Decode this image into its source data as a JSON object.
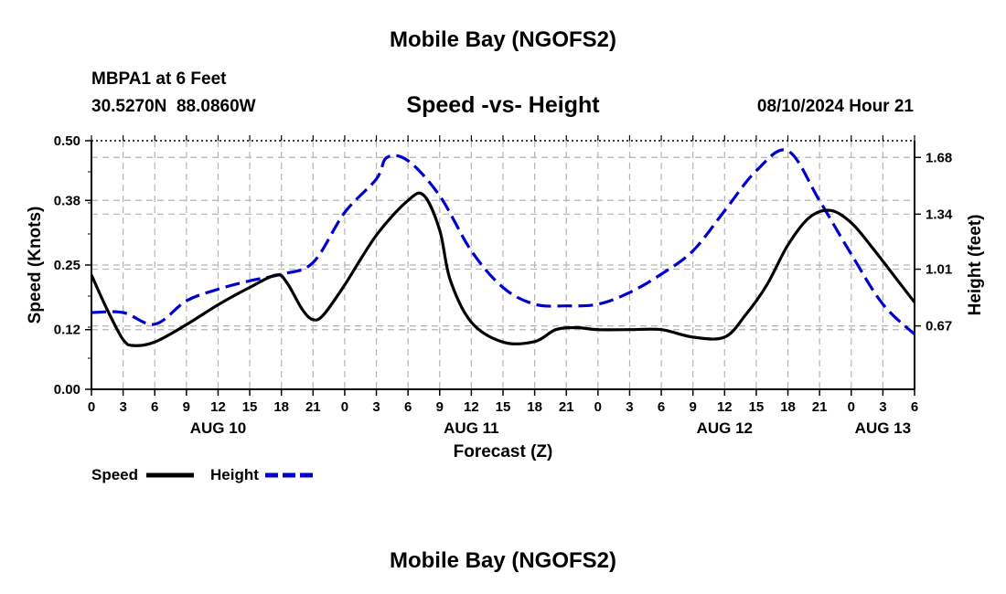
{
  "chart_data": {
    "type": "line",
    "title": "Mobile Bay (NGOFS2)",
    "footer_title": "Mobile Bay (NGOFS2)",
    "subtitle": "Speed -vs- Height",
    "station": "MBPA1 at 6 Feet",
    "coords": "30.5270N  88.0860W",
    "datetime": "08/10/2024 Hour 21",
    "xlabel": "Forecast (Z)",
    "ylabel_left": "Speed (Knots)",
    "ylabel_right": "Height (feet)",
    "x_range_hours": [
      0,
      78
    ],
    "x_tick_labels": [
      "0",
      "3",
      "6",
      "9",
      "12",
      "15",
      "18",
      "21",
      "0",
      "3",
      "6",
      "9",
      "12",
      "15",
      "18",
      "21",
      "0",
      "3",
      "6",
      "9",
      "12",
      "15",
      "18",
      "21",
      "0",
      "3",
      "6"
    ],
    "date_labels": [
      {
        "label": "AUG 10",
        "hour": 12
      },
      {
        "label": "AUG 11",
        "hour": 36
      },
      {
        "label": "AUG 12",
        "hour": 60
      },
      {
        "label": "AUG 13",
        "hour": 75
      }
    ],
    "y_left": {
      "min": 0.0,
      "max": 0.5,
      "ticks": [
        0.0,
        0.12,
        0.25,
        0.38,
        0.5
      ],
      "tick_labels": [
        "0.00",
        "0.12",
        "0.25",
        "0.38",
        "0.50"
      ]
    },
    "y_right": {
      "min": 0.29,
      "max": 1.78,
      "ticks": [
        0.67,
        1.01,
        1.34,
        1.68
      ],
      "tick_labels": [
        "0.67",
        "1.01",
        "1.34",
        "1.68"
      ]
    },
    "series": [
      {
        "name": "Speed",
        "axis": "left",
        "color": "#000000",
        "dashed": false,
        "x": [
          0,
          1.5,
          3,
          4,
          6,
          9,
          12,
          15,
          17.5,
          18.5,
          20,
          21,
          22,
          24,
          27,
          30,
          31.5,
          33,
          34,
          36,
          39,
          42,
          44,
          46,
          48,
          51,
          54,
          57,
          60,
          62,
          64,
          66,
          68,
          70,
          72,
          74,
          76,
          78
        ],
        "y": [
          0.23,
          0.16,
          0.1,
          0.088,
          0.095,
          0.13,
          0.17,
          0.205,
          0.23,
          0.215,
          0.16,
          0.14,
          0.15,
          0.21,
          0.31,
          0.38,
          0.39,
          0.32,
          0.22,
          0.135,
          0.095,
          0.096,
          0.12,
          0.124,
          0.12,
          0.12,
          0.12,
          0.105,
          0.105,
          0.15,
          0.21,
          0.29,
          0.345,
          0.36,
          0.335,
          0.285,
          0.23,
          0.175
        ]
      },
      {
        "name": "Height",
        "axis": "right",
        "color": "#0000cc",
        "dashed": true,
        "x": [
          0,
          3,
          6,
          9,
          12,
          15,
          18,
          21,
          24,
          27,
          28,
          30,
          33,
          36,
          39,
          42,
          45,
          48,
          51,
          54,
          57,
          60,
          63,
          66,
          69,
          72,
          75,
          78
        ],
        "y": [
          0.75,
          0.75,
          0.68,
          0.82,
          0.89,
          0.94,
          0.98,
          1.05,
          1.35,
          1.55,
          1.68,
          1.66,
          1.45,
          1.12,
          0.9,
          0.8,
          0.79,
          0.8,
          0.87,
          0.98,
          1.12,
          1.36,
          1.6,
          1.72,
          1.42,
          1.1,
          0.8,
          0.62
        ]
      }
    ],
    "legend": [
      {
        "label": "Speed",
        "color": "#000000",
        "dashed": false
      },
      {
        "label": "Height",
        "color": "#0000cc",
        "dashed": true
      }
    ]
  }
}
